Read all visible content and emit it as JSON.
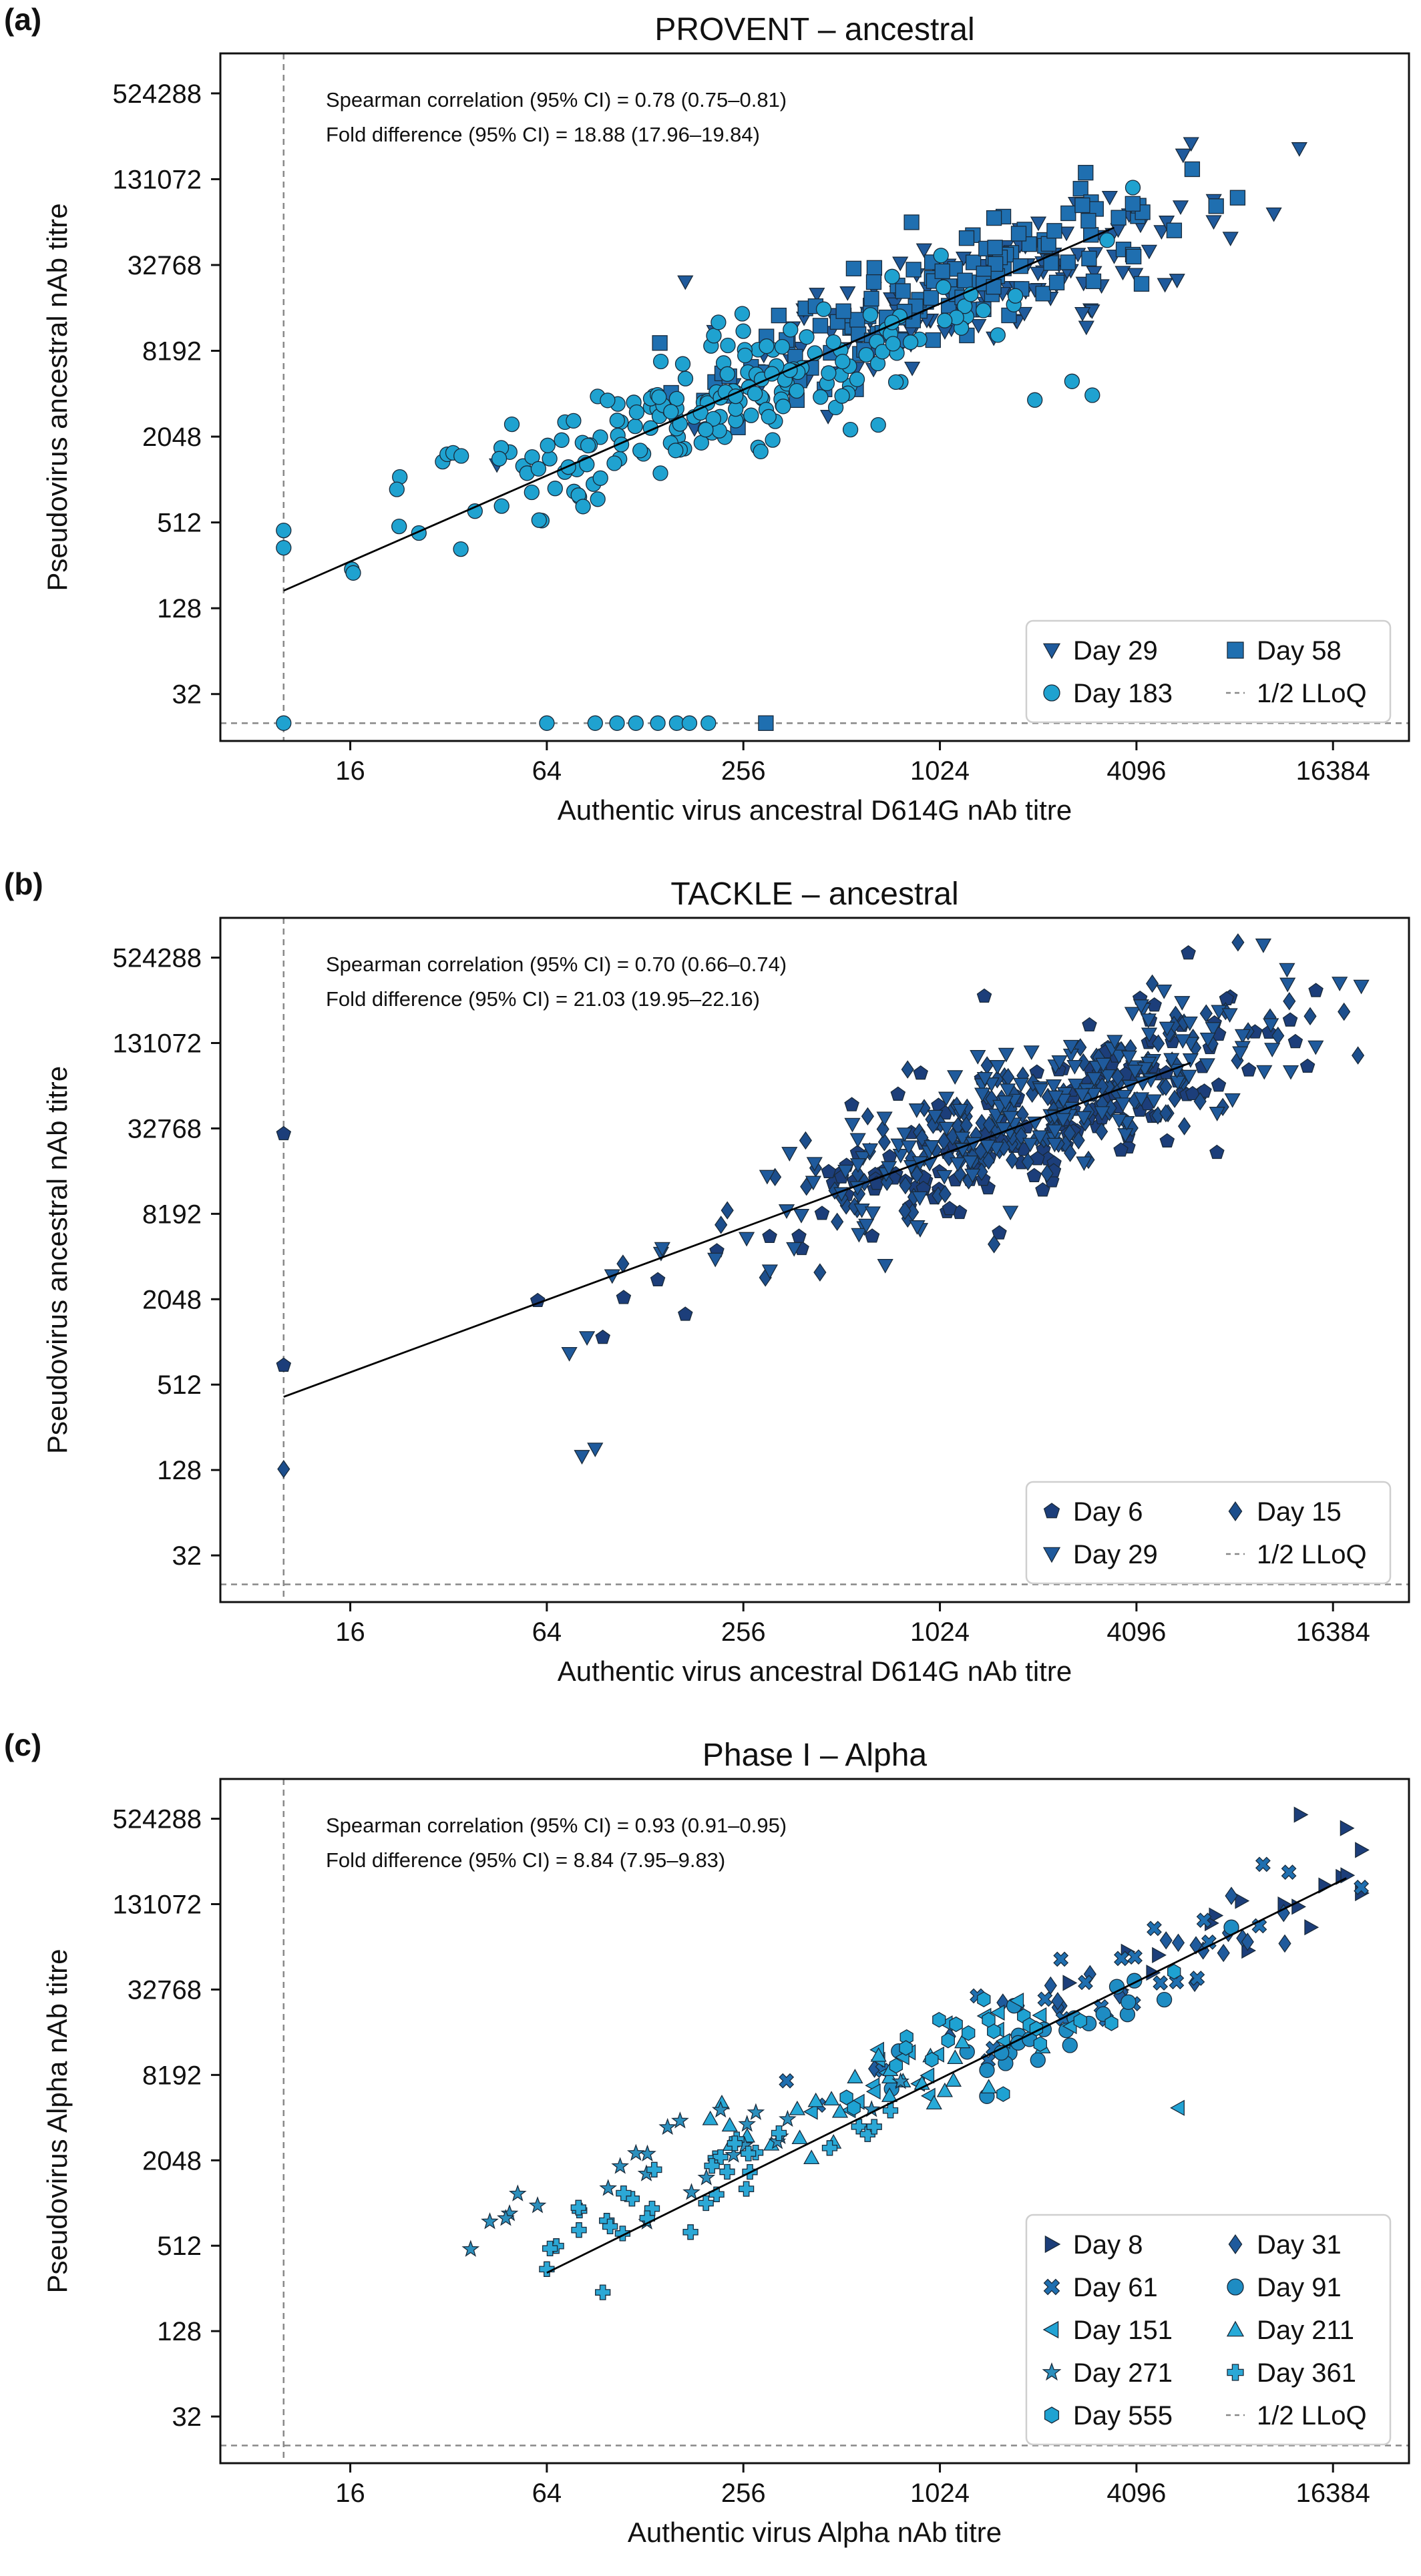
{
  "colors": {
    "day6": "#1c3e7a",
    "day8": "#1c3e7a",
    "day15": "#1c4e8c",
    "day29": "#1f5a9c",
    "day31": "#1f5a9c",
    "day58": "#1f6fb0",
    "day61": "#1f6fb0",
    "day91": "#1e8cc3",
    "day151": "#22a3d4",
    "day183": "#1fa2d0",
    "day211": "#27aad8",
    "day271": "#2c8fbd",
    "day361": "#2ca8d6",
    "day555": "#1ea2d2",
    "refline": "#888888",
    "fit": "#000000"
  },
  "chart_data": [
    {
      "type": "scatter",
      "panel_label": "(a)",
      "title": "PROVENT – ancestral",
      "xlabel": "Authentic virus ancestral D614G nAb titre",
      "ylabel": "Pseudovirus ancestral nAb titre",
      "xscale": "log2",
      "yscale": "log2",
      "xlim": [
        6.4,
        28000
      ],
      "ylim": [
        15,
        1000000
      ],
      "xticks": [
        "16",
        "64",
        "256",
        "1024",
        "4096",
        "16384"
      ],
      "yticks": [
        "32",
        "128",
        "512",
        "2048",
        "8192",
        "32768",
        "131072",
        "524288"
      ],
      "annotations": [
        "Spearman correlation (95% CI) = 0.78 (0.75–0.81)",
        "Fold difference (95% CI) = 18.88 (17.96–19.84)"
      ],
      "lloq_x": 10,
      "lloq_y": 20,
      "fit": {
        "x": [
          10,
          3500
        ],
        "y": [
          170,
          60000
        ]
      },
      "legend_position": "lower right",
      "legend_entries": [
        "Day 29",
        "Day 58",
        "Day 183",
        "1/2 LLoQ"
      ],
      "series": [
        {
          "name": "Day 29",
          "marker": "tri_down",
          "color_key": "day29",
          "seed": 101,
          "n": 130,
          "points": [
            [
              1800,
              45000
            ],
            [
              2500,
              55000
            ],
            [
              3200,
              52000
            ],
            [
              3600,
              58000
            ],
            [
              170,
              25000
            ],
            [
              45,
              1300
            ],
            [
              2800,
              15000
            ],
            [
              2000,
              22000
            ]
          ],
          "cluster": {
            "cx": 1300,
            "cy": 20000,
            "sx": 1.3,
            "sy": 1.3
          }
        },
        {
          "name": "Day 58",
          "marker": "square",
          "color_key": "day58",
          "seed": 202,
          "n": 130,
          "points": [
            [
              1500,
              70000
            ],
            [
              300,
              20
            ]
          ],
          "cluster": {
            "cx": 1100,
            "cy": 22000,
            "sx": 1.2,
            "sy": 1.2
          }
        },
        {
          "name": "Day 183",
          "marker": "circle",
          "color_key": "day183",
          "seed": 303,
          "n": 200,
          "points": [
            [
              10,
              450
            ],
            [
              10,
              340
            ],
            [
              10,
              20
            ],
            [
              64,
              20
            ],
            [
              90,
              20
            ],
            [
              105,
              20
            ],
            [
              120,
              20
            ],
            [
              140,
              20
            ],
            [
              160,
              20
            ],
            [
              175,
              20
            ],
            [
              200,
              20
            ],
            [
              35,
              1500
            ],
            [
              50,
              2500
            ],
            [
              3000,
              4000
            ],
            [
              2000,
              3700
            ],
            [
              2600,
              5000
            ]
          ],
          "cluster": {
            "cx": 200,
            "cy": 3500,
            "sx": 1.45,
            "sy": 1.25
          }
        }
      ]
    },
    {
      "type": "scatter",
      "panel_label": "(b)",
      "title": "TACKLE – ancestral",
      "xlabel": "Authentic virus ancestral D614G nAb titre",
      "ylabel": "Pseudovirus ancestral nAb titre",
      "xscale": "log2",
      "yscale": "log2",
      "xlim": [
        6.4,
        28000
      ],
      "ylim": [
        15,
        1000000
      ],
      "xticks": [
        "16",
        "64",
        "256",
        "1024",
        "4096",
        "16384"
      ],
      "yticks": [
        "32",
        "128",
        "512",
        "2048",
        "8192",
        "32768",
        "131072",
        "524288"
      ],
      "annotations": [
        "Spearman correlation (95% CI) = 0.70 (0.66–0.74)",
        "Fold difference (95% CI) = 21.03 (19.95–22.16)"
      ],
      "lloq_x": 10,
      "lloq_y": 20,
      "fit": {
        "x": [
          10,
          6000
        ],
        "y": [
          420,
          95000
        ]
      },
      "legend_position": "lower right",
      "legend_entries": [
        "Day 6",
        "Day 15",
        "Day 29",
        "1/2 LLoQ"
      ],
      "series": [
        {
          "name": "Day 6",
          "marker": "pentagon",
          "color_key": "day6",
          "seed": 404,
          "n": 170,
          "points": [
            [
              10,
              30000
            ],
            [
              10,
              700
            ],
            [
              1400,
              280000
            ],
            [
              4200,
              270000
            ],
            [
              5500,
              190000
            ],
            [
              60,
              2000
            ],
            [
              110,
              2100
            ],
            [
              140,
              2800
            ],
            [
              170,
              1600
            ],
            [
              95,
              1100
            ],
            [
              550,
              48000
            ]
          ],
          "cluster": {
            "cx": 2000,
            "cy": 35000,
            "sx": 1.4,
            "sy": 1.4
          }
        },
        {
          "name": "Day 15",
          "marker": "diamond",
          "color_key": "day15",
          "seed": 505,
          "n": 170,
          "points": [
            [
              10,
              130
            ],
            [
              1500,
              5000
            ]
          ],
          "cluster": {
            "cx": 2000,
            "cy": 40000,
            "sx": 1.35,
            "sy": 1.35
          }
        },
        {
          "name": "Day 29",
          "marker": "tri_down",
          "color_key": "day29",
          "seed": 606,
          "n": 170,
          "points": [
            [
              82,
              160
            ],
            [
              90,
              180
            ],
            [
              75,
              850
            ],
            [
              85,
              1100
            ],
            [
              6000,
              100000
            ]
          ],
          "cluster": {
            "cx": 2000,
            "cy": 45000,
            "sx": 1.35,
            "sy": 1.35
          }
        }
      ]
    },
    {
      "type": "scatter",
      "panel_label": "(c)",
      "title": "Phase I – Alpha",
      "xlabel": "Authentic virus Alpha nAb titre",
      "ylabel": "Pseudovirus Alpha nAb titre",
      "xscale": "log2",
      "yscale": "log2",
      "xlim": [
        6.4,
        28000
      ],
      "ylim": [
        15,
        1000000
      ],
      "xticks": [
        "16",
        "64",
        "256",
        "1024",
        "4096",
        "16384"
      ],
      "yticks": [
        "32",
        "128",
        "512",
        "2048",
        "8192",
        "32768",
        "131072",
        "524288"
      ],
      "annotations": [
        "Spearman correlation (95% CI) = 0.93 (0.91–0.95)",
        "Fold difference (95% CI) = 8.84 (7.95–9.83)"
      ],
      "lloq_x": 10,
      "lloq_y": 20,
      "fit": {
        "x": [
          64,
          18000
        ],
        "y": [
          330,
          200000
        ]
      },
      "legend_position": "lower right",
      "legend_entries": [
        "Day 8",
        "Day 31",
        "Day 61",
        "Day 91",
        "Day 151",
        "Day 211",
        "Day 271",
        "Day 361",
        "Day 555",
        "1/2 LLoQ"
      ],
      "series": [
        {
          "name": "Day 8",
          "marker": "tri_right",
          "color_key": "day8",
          "seed": 701,
          "n": 16,
          "points": [
            [
              13000,
              560000
            ],
            [
              18000,
              450000
            ],
            [
              14000,
              90000
            ]
          ],
          "cluster": {
            "cx": 8000,
            "cy": 100000,
            "sx": 0.9,
            "sy": 0.9
          }
        },
        {
          "name": "Day 31",
          "marker": "diamond",
          "color_key": "day31",
          "seed": 702,
          "n": 22,
          "points": [
            [
              8000,
              150000
            ],
            [
              5500,
              70000
            ]
          ],
          "cluster": {
            "cx": 3500,
            "cy": 40000,
            "sx": 1.0,
            "sy": 1.0
          }
        },
        {
          "name": "Day 61",
          "marker": "x_thick",
          "color_key": "day61",
          "seed": 703,
          "n": 24,
          "points": [
            [
              10000,
              250000
            ],
            [
              12000,
              220000
            ]
          ],
          "cluster": {
            "cx": 2500,
            "cy": 25000,
            "sx": 1.0,
            "sy": 1.0
          }
        },
        {
          "name": "Day 91",
          "marker": "circle",
          "color_key": "day91",
          "seed": 704,
          "n": 24,
          "points": [
            [
              8000,
              90000
            ]
          ],
          "cluster": {
            "cx": 2000,
            "cy": 15000,
            "sx": 0.9,
            "sy": 0.9
          }
        },
        {
          "name": "Day 151",
          "marker": "tri_left",
          "color_key": "day151",
          "seed": 705,
          "n": 22,
          "points": [
            [
              5500,
              4800
            ]
          ],
          "cluster": {
            "cx": 900,
            "cy": 10000,
            "sx": 0.9,
            "sy": 0.9
          }
        },
        {
          "name": "Day 211",
          "marker": "tri_up",
          "color_key": "day211",
          "seed": 706,
          "n": 26,
          "points": [
            [
              1200,
              14000
            ],
            [
              220,
              5200
            ]
          ],
          "cluster": {
            "cx": 500,
            "cy": 5000,
            "sx": 0.9,
            "sy": 0.9
          }
        },
        {
          "name": "Day 271",
          "marker": "star",
          "color_key": "day271",
          "seed": 707,
          "n": 24,
          "points": [
            [
              150,
              3500
            ],
            [
              120,
              2300
            ]
          ],
          "cluster": {
            "cx": 180,
            "cy": 2000,
            "sx": 0.9,
            "sy": 0.9
          }
        },
        {
          "name": "Day 361",
          "marker": "plus",
          "color_key": "day361",
          "seed": 708,
          "n": 28,
          "points": [
            [
              64,
              350
            ],
            [
              95,
              240
            ],
            [
              100,
              700
            ],
            [
              130,
              800
            ],
            [
              110,
              1200
            ],
            [
              80,
              950
            ]
          ],
          "cluster": {
            "cx": 180,
            "cy": 1400,
            "sx": 1.0,
            "sy": 0.9
          }
        },
        {
          "name": "Day 555",
          "marker": "hexagon",
          "color_key": "day555",
          "seed": 709,
          "n": 20,
          "points": [
            [
              1600,
              6000
            ]
          ],
          "cluster": {
            "cx": 1500,
            "cy": 16000,
            "sx": 0.9,
            "sy": 0.9
          }
        }
      ]
    }
  ]
}
